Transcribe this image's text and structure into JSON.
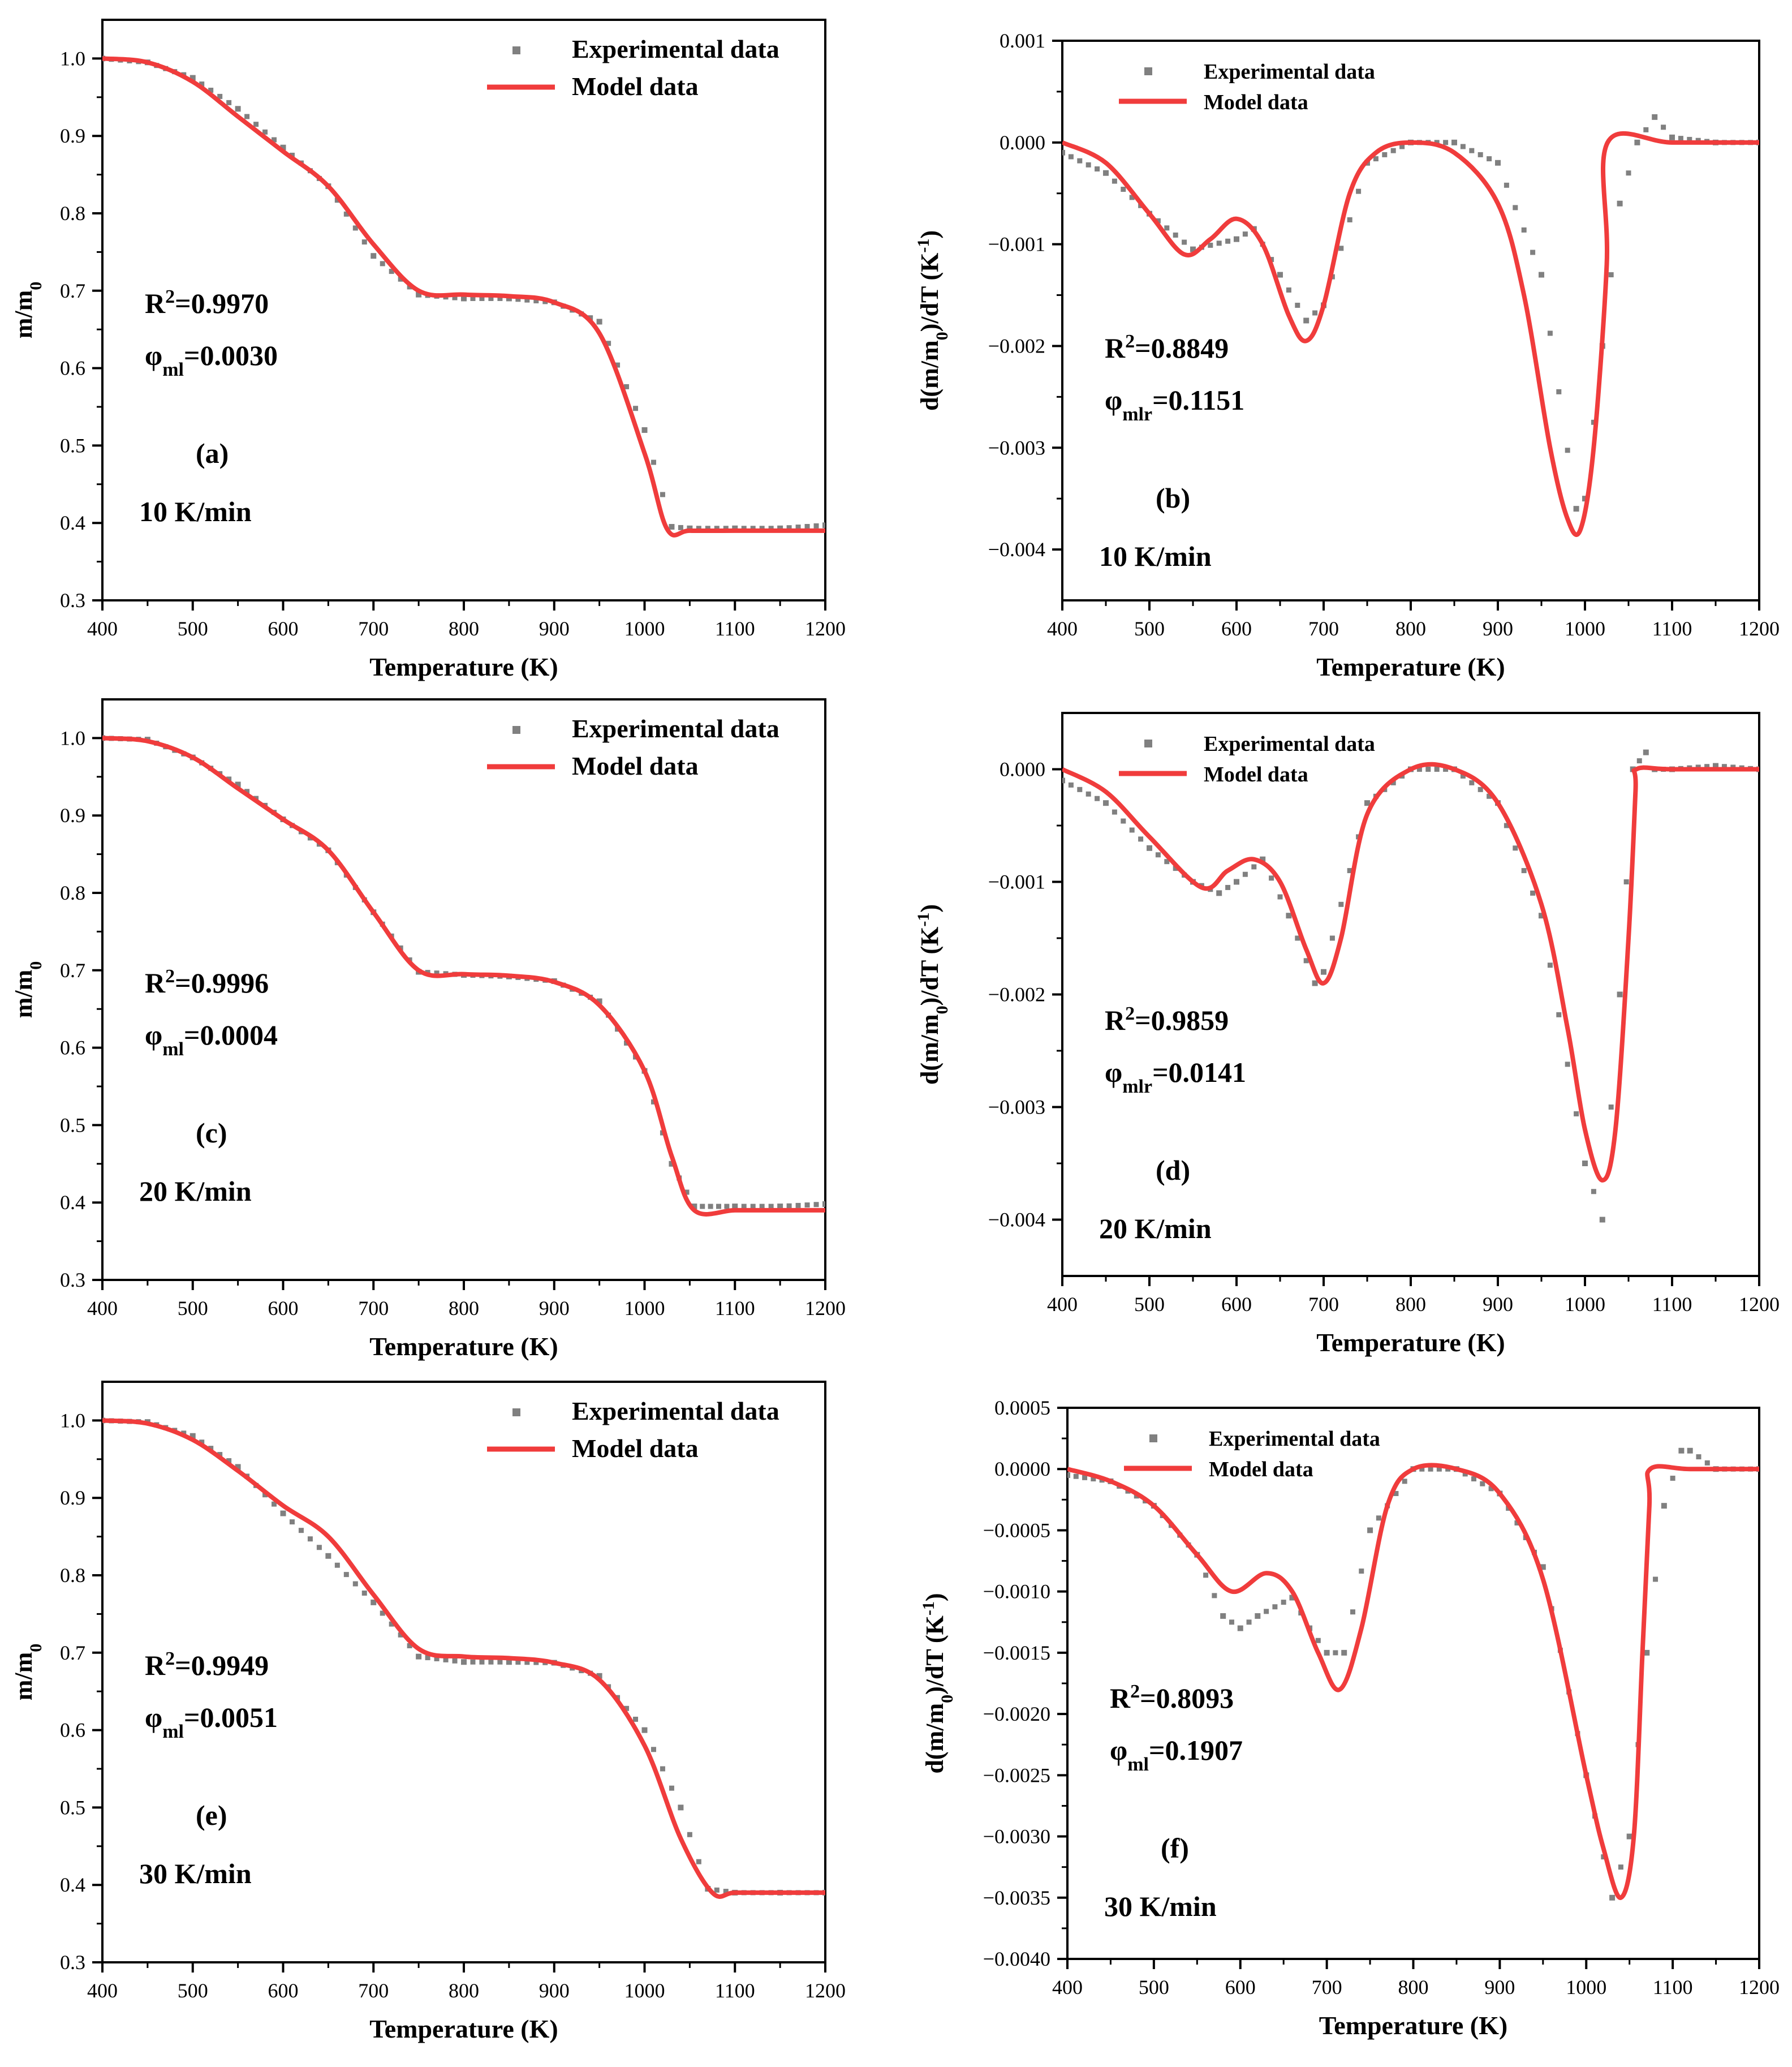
{
  "colors": {
    "experimental": "#808080",
    "model": "#f03c3c",
    "axis": "#000000"
  },
  "chart_data": [
    {
      "id": "a",
      "type": "line",
      "title": "",
      "xlabel": "Temperature (K)",
      "ylabel": "m/m0",
      "xlim": [
        400,
        1200
      ],
      "ylim": [
        0.3,
        1.05
      ],
      "xticks": [
        400,
        500,
        600,
        700,
        800,
        900,
        1000,
        1100,
        1200
      ],
      "xtick_labels": [
        "400",
        "500",
        "600",
        "700",
        "800",
        "900",
        "1000",
        "1100",
        "1200"
      ],
      "yticks": [
        0.3,
        0.4,
        0.5,
        0.6,
        0.7,
        0.8,
        0.9,
        1.0
      ],
      "ytick_labels": [
        "0.3",
        "0.4",
        "0.5",
        "0.6",
        "0.7",
        "0.8",
        "0.9",
        "1.0"
      ],
      "legend": [
        "Experimental data",
        "Model data"
      ],
      "legend_position": "top-right",
      "annotations": {
        "r2": "R²=0.9970",
        "phi_symbol": "φ",
        "phi_sub": "ml",
        "phi_value": "=0.0030",
        "panel": "(a)",
        "rate": "10 K/min"
      },
      "series": [
        {
          "name": "Experimental data",
          "style": "markers",
          "x": [
            400,
            450,
            500,
            550,
            600,
            650,
            700,
            750,
            800,
            850,
            900,
            950,
            1000,
            1030,
            1050,
            1100,
            1150,
            1200
          ],
          "y": [
            1.0,
            0.995,
            0.975,
            0.935,
            0.885,
            0.835,
            0.745,
            0.695,
            0.69,
            0.69,
            0.685,
            0.66,
            0.52,
            0.395,
            0.393,
            0.393,
            0.393,
            0.397
          ]
        },
        {
          "name": "Model data",
          "style": "line",
          "x": [
            400,
            450,
            500,
            550,
            600,
            650,
            700,
            750,
            800,
            850,
            900,
            950,
            1000,
            1025,
            1050,
            1100,
            1150,
            1200
          ],
          "y": [
            1.0,
            0.995,
            0.97,
            0.925,
            0.88,
            0.835,
            0.76,
            0.7,
            0.695,
            0.693,
            0.685,
            0.645,
            0.49,
            0.392,
            0.39,
            0.39,
            0.39,
            0.39
          ]
        }
      ]
    },
    {
      "id": "b",
      "type": "line",
      "title": "",
      "xlabel": "Temperature (K)",
      "ylabel": "d(m/m0)/dT (K-1)",
      "xlim": [
        400,
        1200
      ],
      "ylim": [
        -0.0045,
        0.001
      ],
      "xticks": [
        400,
        500,
        600,
        700,
        800,
        900,
        1000,
        1100,
        1200
      ],
      "xtick_labels": [
        "400",
        "500",
        "600",
        "700",
        "800",
        "900",
        "1000",
        "1100",
        "1200"
      ],
      "yticks": [
        -0.004,
        -0.003,
        -0.002,
        -0.001,
        0.0,
        0.001
      ],
      "ytick_labels": [
        "-0.004",
        "-0.003",
        "-0.002",
        "-0.001",
        "0.000",
        "0.001"
      ],
      "legend": [
        "Experimental data",
        "Model data"
      ],
      "legend_position": "top-right",
      "annotations": {
        "r2": "R²=0.8849",
        "phi_symbol": "φ",
        "phi_sub": "mlr",
        "phi_value": "=0.1151",
        "panel": "(b)",
        "rate": "10 K/min"
      },
      "series": [
        {
          "name": "Experimental data",
          "style": "markers",
          "x": [
            400,
            450,
            500,
            550,
            600,
            620,
            650,
            680,
            700,
            750,
            800,
            850,
            900,
            950,
            990,
            1000,
            1020,
            1040,
            1060,
            1080,
            1100,
            1150,
            1200
          ],
          "y": [
            -0.0001,
            -0.0003,
            -0.0007,
            -0.00105,
            -0.00095,
            -0.00085,
            -0.0013,
            -0.00175,
            -0.0016,
            -0.0002,
            0.0,
            0.0,
            -0.0002,
            -0.0013,
            -0.0036,
            -0.0035,
            -0.002,
            -0.0006,
            0.0,
            0.00025,
            5e-05,
            0.0,
            0.0
          ]
        },
        {
          "name": "Model data",
          "style": "line",
          "x": [
            400,
            450,
            500,
            540,
            570,
            600,
            630,
            660,
            680,
            700,
            730,
            760,
            800,
            850,
            900,
            930,
            960,
            980,
            995,
            1010,
            1025,
            1026,
            1100,
            1200
          ],
          "y": [
            0.0,
            -0.0002,
            -0.0007,
            -0.0011,
            -0.00095,
            -0.00075,
            -0.001,
            -0.0017,
            -0.00195,
            -0.0016,
            -0.0005,
            -0.0001,
            0.0,
            -0.0001,
            -0.0006,
            -0.0015,
            -0.003,
            -0.0037,
            -0.0038,
            -0.003,
            -0.0012,
            0.0,
            0.0,
            0.0
          ]
        }
      ]
    },
    {
      "id": "c",
      "type": "line",
      "title": "",
      "xlabel": "Temperature (K)",
      "ylabel": "m/m0",
      "xlim": [
        400,
        1200
      ],
      "ylim": [
        0.3,
        1.05
      ],
      "xticks": [
        400,
        500,
        600,
        700,
        800,
        900,
        1000,
        1100,
        1200
      ],
      "xtick_labels": [
        "400",
        "500",
        "600",
        "700",
        "800",
        "900",
        "1000",
        "1100",
        "1200"
      ],
      "yticks": [
        0.3,
        0.4,
        0.5,
        0.6,
        0.7,
        0.8,
        0.9,
        1.0
      ],
      "ytick_labels": [
        "0.3",
        "0.4",
        "0.5",
        "0.6",
        "0.7",
        "0.8",
        "0.9",
        "1.0"
      ],
      "legend": [
        "Experimental data",
        "Model data"
      ],
      "legend_position": "top-right",
      "annotations": {
        "r2": "R²=0.9996",
        "phi_symbol": "φ",
        "phi_sub": "ml",
        "phi_value": "=0.0004",
        "panel": "(c)",
        "rate": "20 K/min"
      },
      "series": [
        {
          "name": "Experimental data",
          "style": "markers",
          "x": [
            400,
            450,
            500,
            550,
            600,
            650,
            700,
            750,
            800,
            850,
            900,
            950,
            1000,
            1030,
            1055,
            1100,
            1150,
            1200
          ],
          "y": [
            1.0,
            0.998,
            0.975,
            0.94,
            0.895,
            0.855,
            0.775,
            0.698,
            0.694,
            0.692,
            0.686,
            0.66,
            0.57,
            0.45,
            0.395,
            0.395,
            0.395,
            0.398
          ]
        },
        {
          "name": "Model data",
          "style": "line",
          "x": [
            400,
            450,
            500,
            550,
            600,
            650,
            700,
            750,
            800,
            850,
            900,
            950,
            1000,
            1030,
            1055,
            1100,
            1150,
            1200
          ],
          "y": [
            1.0,
            0.996,
            0.975,
            0.935,
            0.895,
            0.855,
            0.775,
            0.7,
            0.695,
            0.693,
            0.685,
            0.655,
            0.57,
            0.46,
            0.39,
            0.39,
            0.39,
            0.39
          ]
        }
      ]
    },
    {
      "id": "d",
      "type": "line",
      "title": "",
      "xlabel": "Temperature (K)",
      "ylabel": "d(m/m0)/dT (K-1)",
      "xlim": [
        400,
        1200
      ],
      "ylim": [
        -0.0045,
        0.0005
      ],
      "xticks": [
        400,
        500,
        600,
        700,
        800,
        900,
        1000,
        1100,
        1200
      ],
      "xtick_labels": [
        "400",
        "500",
        "600",
        "700",
        "800",
        "900",
        "1000",
        "1100",
        "1200"
      ],
      "yticks": [
        -0.004,
        -0.003,
        -0.002,
        -0.001,
        0.0
      ],
      "ytick_labels": [
        "-0.004",
        "-0.003",
        "-0.002",
        "-0.001",
        "0.000"
      ],
      "legend": [
        "Experimental data",
        "Model data"
      ],
      "legend_position": "top-right",
      "annotations": {
        "r2": "R²=0.9859",
        "phi_symbol": "φ",
        "phi_sub": "mlr",
        "phi_value": "=0.0141",
        "panel": "(d)",
        "rate": "20 K/min"
      },
      "series": [
        {
          "name": "Experimental data",
          "style": "markers",
          "x": [
            400,
            450,
            500,
            550,
            580,
            600,
            630,
            660,
            690,
            700,
            750,
            800,
            850,
            900,
            950,
            1000,
            1020,
            1040,
            1055,
            1070,
            1080,
            1100,
            1150,
            1200
          ],
          "y": [
            -0.0001,
            -0.0003,
            -0.0007,
            -0.001,
            -0.0011,
            -0.001,
            -0.0008,
            -0.0013,
            -0.0019,
            -0.0018,
            -0.0003,
            0.0,
            0.0,
            -0.0003,
            -0.0013,
            -0.0035,
            -0.004,
            -0.002,
            0.0,
            0.00015,
            0.0,
            0.0,
            3e-05,
            0.0
          ]
        },
        {
          "name": "Model data",
          "style": "line",
          "x": [
            400,
            450,
            500,
            560,
            590,
            620,
            650,
            680,
            700,
            720,
            750,
            800,
            850,
            900,
            950,
            980,
            1000,
            1020,
            1035,
            1050,
            1058,
            1059,
            1100,
            1200
          ],
          "y": [
            0.0,
            -0.0002,
            -0.0006,
            -0.00105,
            -0.0009,
            -0.0008,
            -0.001,
            -0.0016,
            -0.0019,
            -0.0015,
            -0.0004,
            0.0,
            0.0,
            -0.0003,
            -0.0012,
            -0.0023,
            -0.0032,
            -0.00365,
            -0.0032,
            -0.0015,
            -0.0002,
            0.0,
            0.0,
            0.0
          ]
        }
      ]
    },
    {
      "id": "e",
      "type": "line",
      "title": "",
      "xlabel": "Temperature (K)",
      "ylabel": "m/m0",
      "xlim": [
        400,
        1200
      ],
      "ylim": [
        0.3,
        1.05
      ],
      "xticks": [
        400,
        500,
        600,
        700,
        800,
        900,
        1000,
        1100,
        1200
      ],
      "xtick_labels": [
        "400",
        "500",
        "600",
        "700",
        "800",
        "900",
        "1000",
        "1100",
        "1200"
      ],
      "yticks": [
        0.3,
        0.4,
        0.5,
        0.6,
        0.7,
        0.8,
        0.9,
        1.0
      ],
      "ytick_labels": [
        "0.3",
        "0.4",
        "0.5",
        "0.6",
        "0.7",
        "0.8",
        "0.9",
        "1.0"
      ],
      "legend": [
        "Experimental data",
        "Model data"
      ],
      "legend_position": "top-right",
      "annotations": {
        "r2": "R²=0.9949",
        "phi_symbol": "φ",
        "phi_sub": "ml",
        "phi_value": "=0.0051",
        "panel": "(e)",
        "rate": "30 K/min"
      },
      "series": [
        {
          "name": "Experimental data",
          "style": "markers",
          "x": [
            400,
            450,
            500,
            550,
            600,
            650,
            700,
            750,
            800,
            850,
            900,
            950,
            1000,
            1040,
            1070,
            1100,
            1150,
            1200
          ],
          "y": [
            1.0,
            0.998,
            0.98,
            0.94,
            0.88,
            0.825,
            0.765,
            0.695,
            0.688,
            0.688,
            0.687,
            0.67,
            0.6,
            0.5,
            0.395,
            0.39,
            0.39,
            0.39
          ]
        },
        {
          "name": "Model data",
          "style": "line",
          "x": [
            400,
            450,
            500,
            550,
            600,
            650,
            700,
            750,
            800,
            850,
            900,
            950,
            1000,
            1040,
            1075,
            1100,
            1150,
            1200
          ],
          "y": [
            1.0,
            0.996,
            0.975,
            0.935,
            0.89,
            0.85,
            0.775,
            0.705,
            0.695,
            0.693,
            0.687,
            0.665,
            0.58,
            0.46,
            0.39,
            0.39,
            0.39,
            0.39
          ]
        }
      ]
    },
    {
      "id": "f",
      "type": "line",
      "title": "",
      "xlabel": "Temperature (K)",
      "ylabel": "d(m/m0)/dT (K-1)",
      "xlim": [
        400,
        1200
      ],
      "ylim": [
        -0.004,
        0.0005
      ],
      "xticks": [
        400,
        500,
        600,
        700,
        800,
        900,
        1000,
        1100,
        1200
      ],
      "xtick_labels": [
        "400",
        "500",
        "600",
        "700",
        "800",
        "900",
        "1000",
        "1100",
        "1200"
      ],
      "yticks": [
        -0.004,
        -0.0035,
        -0.003,
        -0.0025,
        -0.002,
        -0.0015,
        -0.001,
        -0.0005,
        0.0,
        0.0005
      ],
      "ytick_labels": [
        "-0.0040",
        "-0.0035",
        "-0.0030",
        "-0.0025",
        "-0.0020",
        "-0.0015",
        "-0.0010",
        "-0.0005",
        "0.0000",
        "0.0005"
      ],
      "legend": [
        "Experimental data",
        "Model data"
      ],
      "legend_position": "top-right",
      "annotations": {
        "r2": "R²=0.8093",
        "phi_symbol": "φ",
        "phi_sub": "ml",
        "phi_value": "=0.1907",
        "panel": "(f)",
        "rate": "30 K/min"
      },
      "series": [
        {
          "name": "Experimental data",
          "style": "markers",
          "x": [
            400,
            450,
            500,
            550,
            580,
            600,
            620,
            660,
            680,
            700,
            720,
            750,
            800,
            850,
            900,
            950,
            1000,
            1030,
            1050,
            1070,
            1090,
            1110,
            1120,
            1150,
            1200
          ],
          "y": [
            -5e-05,
            -0.0001,
            -0.0003,
            -0.0007,
            -0.0012,
            -0.0013,
            -0.0012,
            -0.00105,
            -0.0013,
            -0.0015,
            -0.0015,
            -0.0005,
            0.0,
            0.0,
            -0.0002,
            -0.0008,
            -0.0025,
            -0.0035,
            -0.003,
            -0.0015,
            -0.0003,
            0.00015,
            0.00015,
            0.0,
            0.0
          ]
        },
        {
          "name": "Model data",
          "style": "line",
          "x": [
            400,
            450,
            500,
            550,
            590,
            630,
            660,
            690,
            715,
            740,
            770,
            800,
            850,
            900,
            950,
            1000,
            1020,
            1040,
            1055,
            1065,
            1073,
            1074,
            1120,
            1200
          ],
          "y": [
            0.0,
            -0.0001,
            -0.0003,
            -0.0007,
            -0.001,
            -0.00085,
            -0.001,
            -0.0015,
            -0.0018,
            -0.0013,
            -0.0003,
            0.0,
            0.0,
            -0.0002,
            -0.0009,
            -0.0025,
            -0.0031,
            -0.0035,
            -0.003,
            -0.0015,
            -0.0003,
            0.0,
            0.0,
            0.0
          ]
        }
      ]
    }
  ]
}
